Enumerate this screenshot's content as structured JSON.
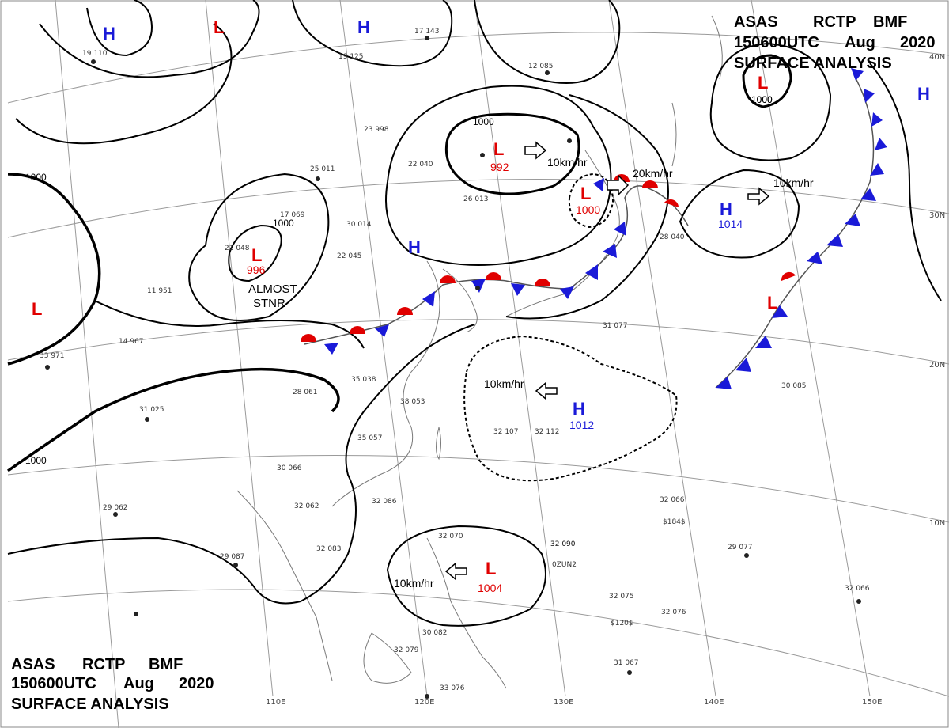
{
  "header_top_right": {
    "line1": [
      "ASAS",
      "RCTP",
      "BMF"
    ],
    "line2": [
      "150600UTC",
      "Aug",
      "2020"
    ],
    "line3": "SURFACE ANALYSIS"
  },
  "header_bottom_left": {
    "line1": [
      "ASAS",
      "RCTP",
      "BMF"
    ],
    "line2": [
      "150600UTC",
      "Aug",
      "2020"
    ],
    "line3": "SURFACE ANALYSIS"
  },
  "lat_labels": [
    "40N",
    "30N",
    "20N",
    "10N"
  ],
  "lon_labels": [
    "110E",
    "120E",
    "130E",
    "140E",
    "150E"
  ],
  "isobar_labels": [
    "1000",
    "1000",
    "1000",
    "1000",
    "1000"
  ],
  "colors": {
    "low": "#e00000",
    "high": "#1a1ad8",
    "isobar": "#000000",
    "grid": "#999999",
    "coast": "#777777"
  },
  "pressure_centers": [
    {
      "type": "L",
      "value": "996",
      "note": "ALMOST STNR"
    },
    {
      "type": "L",
      "value": "992",
      "motion": "10km/hr"
    },
    {
      "type": "L",
      "value": "1000",
      "motion": "20km/hr"
    },
    {
      "type": "L",
      "value": "1000"
    },
    {
      "type": "H",
      "value": "1014",
      "motion": "10km/hr"
    },
    {
      "type": "H",
      "value": "1012",
      "motion": "10km/hr"
    },
    {
      "type": "L",
      "value": "1004",
      "motion": "10km/hr"
    },
    {
      "type": "H",
      "value": ""
    },
    {
      "type": "H",
      "value": ""
    },
    {
      "type": "H",
      "value": ""
    },
    {
      "type": "H",
      "value": ""
    },
    {
      "type": "L",
      "value": ""
    },
    {
      "type": "L",
      "value": ""
    },
    {
      "type": "L",
      "value": ""
    }
  ],
  "notes": {
    "almost_stnr_line1": "ALMOST",
    "almost_stnr_line2": "STNR"
  },
  "station_samples": [
    "19 110",
    "19 125",
    "17 143",
    "12 085",
    "23 998",
    "22 040",
    "25 011",
    "26 013",
    "30 014",
    "22 045",
    "21 048",
    "11 951",
    "14 967",
    "33 971",
    "31 025",
    "28 061",
    "35 038",
    "38 053",
    "35 057",
    "30 066",
    "32 062",
    "32 083",
    "29 087",
    "32 090",
    "29 062",
    "32 086",
    "32 070",
    "32 107",
    "32 112",
    "31 077",
    "30 085",
    "32 090",
    "32 066",
    "29 077",
    "32 075",
    "32 076",
    "32 066",
    "31 067",
    "33 076",
    "32 079",
    "30 082",
    "28 040",
    "17 069",
    "0ZUN2",
    "$120$",
    "$184$"
  ]
}
